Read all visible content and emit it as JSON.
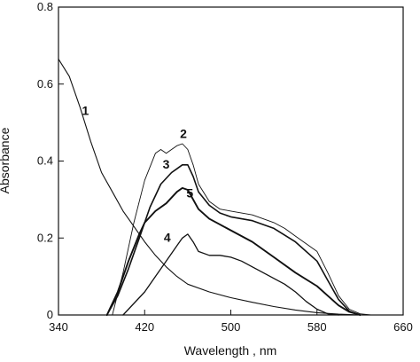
{
  "chart_data": {
    "type": "line",
    "xlabel": "Wavelength , nm",
    "ylabel": "Absorbance",
    "xlim": [
      340,
      660
    ],
    "ylim": [
      0,
      0.8
    ],
    "x_ticks": [
      340,
      420,
      500,
      580,
      660
    ],
    "y_ticks": [
      0,
      0.2,
      0.4,
      0.6,
      0.8
    ],
    "x_tick_labels": [
      "340",
      "420",
      "500",
      "580",
      "660"
    ],
    "y_tick_labels": [
      "0",
      "0.2",
      "0.4",
      "0.6",
      "0.8"
    ],
    "grid": false,
    "series": [
      {
        "name": "1",
        "x": [
          340,
          350,
          360,
          370,
          380,
          390,
          400,
          410,
          420,
          430,
          440,
          450,
          460,
          480,
          500,
          520,
          540,
          560,
          580,
          600,
          620,
          640
        ],
        "y": [
          0.665,
          0.62,
          0.54,
          0.45,
          0.37,
          0.32,
          0.27,
          0.23,
          0.19,
          0.155,
          0.125,
          0.1,
          0.08,
          0.06,
          0.045,
          0.033,
          0.022,
          0.013,
          0.006,
          0.002,
          0.0,
          0.0
        ],
        "label_at": [
          365,
          0.52
        ]
      },
      {
        "name": "2",
        "x": [
          390,
          400,
          410,
          420,
          430,
          435,
          440,
          445,
          450,
          455,
          460,
          465,
          470,
          480,
          490,
          500,
          510,
          520,
          530,
          540,
          550,
          560,
          570,
          580,
          590,
          600,
          610,
          620,
          630
        ],
        "y": [
          0.0,
          0.11,
          0.24,
          0.35,
          0.42,
          0.43,
          0.42,
          0.43,
          0.44,
          0.445,
          0.43,
          0.39,
          0.34,
          0.295,
          0.275,
          0.27,
          0.265,
          0.26,
          0.25,
          0.24,
          0.225,
          0.205,
          0.185,
          0.165,
          0.11,
          0.05,
          0.015,
          0.003,
          0.0
        ],
        "label_at": [
          456,
          0.46
        ]
      },
      {
        "name": "3",
        "x": [
          385,
          395,
          405,
          415,
          425,
          435,
          445,
          450,
          455,
          460,
          465,
          470,
          480,
          490,
          500,
          520,
          540,
          560,
          580,
          590,
          600,
          610,
          620
        ],
        "y": [
          0.0,
          0.05,
          0.12,
          0.2,
          0.28,
          0.34,
          0.37,
          0.38,
          0.39,
          0.39,
          0.36,
          0.32,
          0.285,
          0.265,
          0.255,
          0.245,
          0.225,
          0.19,
          0.14,
          0.09,
          0.04,
          0.01,
          0.0
        ],
        "label_at": [
          440,
          0.38
        ]
      },
      {
        "name": "4",
        "x": [
          400,
          410,
          420,
          430,
          440,
          450,
          455,
          460,
          465,
          470,
          480,
          490,
          500,
          510,
          520,
          530,
          540,
          550,
          560,
          570,
          580,
          590,
          600
        ],
        "y": [
          0.0,
          0.03,
          0.06,
          0.1,
          0.14,
          0.18,
          0.2,
          0.21,
          0.19,
          0.165,
          0.155,
          0.155,
          0.15,
          0.14,
          0.125,
          0.11,
          0.095,
          0.08,
          0.06,
          0.035,
          0.015,
          0.003,
          0.0
        ],
        "label_at": [
          441,
          0.19
        ]
      },
      {
        "name": "5",
        "x": [
          385,
          395,
          405,
          415,
          420,
          430,
          440,
          450,
          455,
          460,
          465,
          470,
          480,
          490,
          500,
          520,
          540,
          560,
          580,
          590,
          600,
          610,
          620
        ],
        "y": [
          0.0,
          0.06,
          0.14,
          0.21,
          0.24,
          0.27,
          0.29,
          0.32,
          0.33,
          0.325,
          0.3,
          0.275,
          0.25,
          0.235,
          0.22,
          0.19,
          0.15,
          0.11,
          0.075,
          0.05,
          0.025,
          0.008,
          0.0
        ],
        "label_at": [
          462,
          0.305
        ]
      }
    ]
  }
}
